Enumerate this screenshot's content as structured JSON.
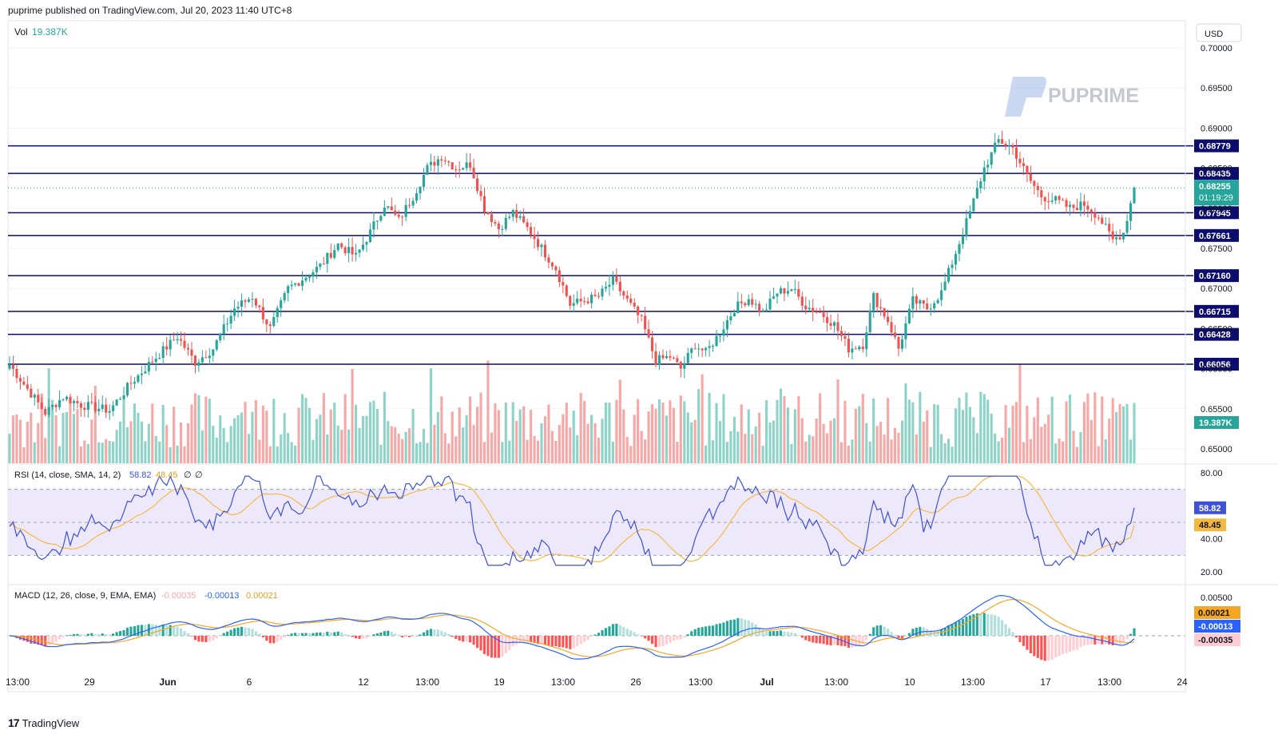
{
  "header": {
    "published": "puprime published on TradingView.com, Jul 20, 2023 11:40 UTC+8"
  },
  "footer": {
    "brand": "TradingView"
  },
  "watermark": {
    "text": "PUPRIME"
  },
  "currency_button": "USD",
  "colors": {
    "up": "#26a69a",
    "down": "#ef5350",
    "vol_up": "#8ed3c7",
    "vol_down": "#f7a8a6",
    "level": "#0c0c6e",
    "rsi": "#3f51d6",
    "rsi_sma": "#f5b942",
    "macd": "#2962ff",
    "signal": "#f5a623"
  },
  "chart_data": [
    {
      "type": "candlestick",
      "name": "price",
      "ylim": [
        0.6495,
        0.701
      ],
      "y_ticks": [
        "0.70000",
        "0.69500",
        "0.69000",
        "0.68500",
        "0.68000",
        "0.67500",
        "0.67000",
        "0.66500",
        "0.66000",
        "0.65500",
        "0.65000"
      ],
      "x_ticks": [
        "13:00",
        "29",
        "Jun",
        "6",
        "12",
        "13:00",
        "19",
        "13:00",
        "26",
        "13:00",
        "Jul",
        "13:00",
        "10",
        "13:00",
        "17",
        "13:00",
        "24"
      ],
      "levels": [
        "0.68779",
        "0.68435",
        "0.67945",
        "0.67661",
        "0.67160",
        "0.66715",
        "0.66428",
        "0.66056"
      ],
      "current_price": "0.68255",
      "countdown": "01:19:29",
      "volume": {
        "label": "Vol",
        "value": "19.387K"
      },
      "close_path": [
        [
          0,
          0.6605
        ],
        [
          5,
          0.6575
        ],
        [
          10,
          0.6545
        ],
        [
          15,
          0.6565
        ],
        [
          20,
          0.6555
        ],
        [
          28,
          0.6548
        ],
        [
          34,
          0.6582
        ],
        [
          40,
          0.661
        ],
        [
          47,
          0.664
        ],
        [
          52,
          0.6608
        ],
        [
          57,
          0.6625
        ],
        [
          63,
          0.6675
        ],
        [
          68,
          0.669
        ],
        [
          73,
          0.665
        ],
        [
          78,
          0.67
        ],
        [
          83,
          0.6715
        ],
        [
          87,
          0.6728
        ],
        [
          92,
          0.6755
        ],
        [
          97,
          0.674
        ],
        [
          101,
          0.677
        ],
        [
          105,
          0.6805
        ],
        [
          109,
          0.6785
        ],
        [
          113,
          0.6815
        ],
        [
          117,
          0.685
        ],
        [
          121,
          0.6865
        ],
        [
          125,
          0.685
        ],
        [
          129,
          0.6855
        ],
        [
          133,
          0.68
        ],
        [
          137,
          0.6775
        ],
        [
          141,
          0.6795
        ],
        [
          146,
          0.677
        ],
        [
          149,
          0.675
        ],
        [
          153,
          0.6725
        ],
        [
          157,
          0.668
        ],
        [
          161,
          0.6685
        ],
        [
          165,
          0.669
        ],
        [
          169,
          0.671
        ],
        [
          173,
          0.6685
        ],
        [
          177,
          0.666
        ],
        [
          181,
          0.661
        ],
        [
          185,
          0.6615
        ],
        [
          188,
          0.66
        ],
        [
          192,
          0.663
        ],
        [
          195,
          0.662
        ],
        [
          199,
          0.6645
        ],
        [
          203,
          0.6675
        ],
        [
          207,
          0.6688
        ],
        [
          211,
          0.667
        ],
        [
          215,
          0.6695
        ],
        [
          219,
          0.67
        ],
        [
          223,
          0.6678
        ],
        [
          227,
          0.667
        ],
        [
          231,
          0.6655
        ],
        [
          235,
          0.6625
        ],
        [
          239,
          0.663
        ],
        [
          242,
          0.669
        ],
        [
          246,
          0.666
        ],
        [
          249,
          0.6625
        ],
        [
          253,
          0.6685
        ],
        [
          257,
          0.6675
        ],
        [
          261,
          0.6695
        ],
        [
          265,
          0.6745
        ],
        [
          269,
          0.6795
        ],
        [
          273,
          0.685
        ],
        [
          277,
          0.6885
        ],
        [
          281,
          0.6875
        ],
        [
          285,
          0.684
        ],
        [
          289,
          0.6815
        ],
        [
          293,
          0.681
        ],
        [
          297,
          0.68
        ],
        [
          301,
          0.6805
        ],
        [
          305,
          0.679
        ],
        [
          309,
          0.676
        ],
        [
          312,
          0.677
        ],
        [
          315,
          0.6825
        ]
      ],
      "rsi": {
        "label": "RSI (14, close, SMA, 14, 2)",
        "value": "58.82",
        "sma_value": "48.45",
        "nan1": "∅",
        "nan2": "∅",
        "ylim": [
          15,
          88
        ],
        "ticks": [
          "80.00",
          "40.00",
          "20.00"
        ],
        "upper": 70,
        "mid": 50,
        "lower": 30
      },
      "macd": {
        "label": "MACD (12, 26, close, 9, EMA, EMA)",
        "hist_value": "-0.00035",
        "macd_value": "-0.00013",
        "signal_value": "0.00021",
        "tick": "0.00500"
      }
    }
  ]
}
